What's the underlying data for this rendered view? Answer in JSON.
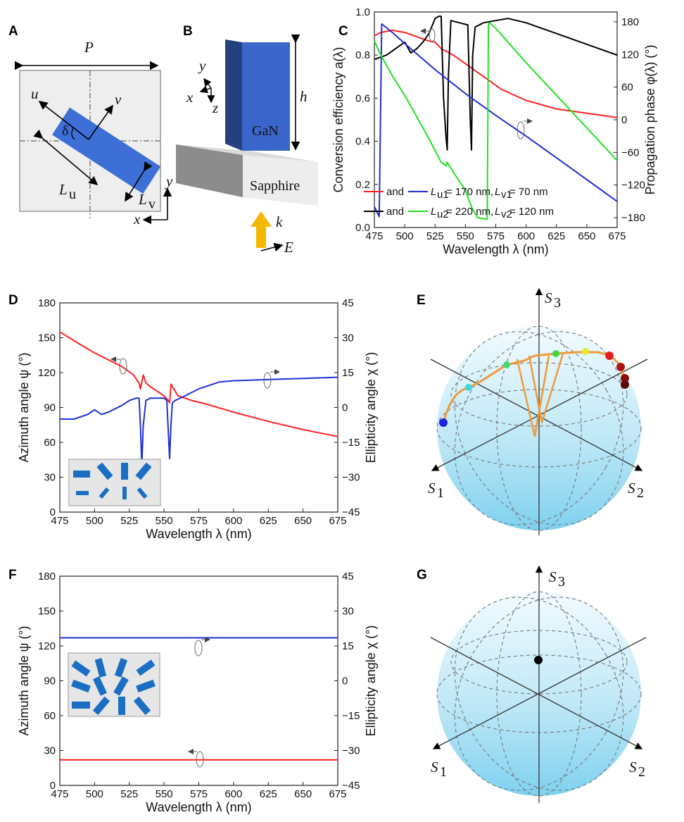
{
  "panel_labels": {
    "A": "A",
    "B": "B",
    "C": "C",
    "D": "D",
    "E": "E",
    "F": "F",
    "G": "G"
  },
  "panel_a": {
    "period": "P",
    "angle": "δ",
    "axis_u": "u",
    "axis_v": "v",
    "length_u_main": "L",
    "length_u_sub": "u",
    "length_v_main": "L",
    "length_v_sub": "v",
    "axis_x": "x",
    "axis_y": "y",
    "colors": {
      "cell": "#eeeeee",
      "pillar": "#3d6fd6"
    }
  },
  "panel_b": {
    "pillar_label": "GaN",
    "substrate_label": "Sapphire",
    "height": "h",
    "axis_x": "x",
    "axis_y": "y",
    "axis_z": "z",
    "wave_k": "k",
    "field_e": "E",
    "colors": {
      "pillar_front": "#3a66cc",
      "pillar_side": "#24407e",
      "arrow": "#f5b800"
    }
  },
  "chart_data": [
    {
      "id": "C",
      "type": "line",
      "xlabel": "Wavelength λ (nm)",
      "ylabel": "Conversion efficiency a(λ)",
      "ylabel_right": "Propagation phase φ(λ) (°)",
      "xlim": [
        475,
        675
      ],
      "ylim": [
        0,
        1.0
      ],
      "ylim_right": [
        -198,
        198
      ],
      "xticks": [
        "475",
        "500",
        "525",
        "550",
        "575",
        "600",
        "625",
        "650",
        "675"
      ],
      "yticks": [
        "0.0",
        "0.2",
        "0.4",
        "0.6",
        "0.8",
        "1.0"
      ],
      "yticks_right": [
        "−180",
        "−120",
        "−60",
        "0",
        "60",
        "120",
        "180"
      ],
      "legend": [
        {
          "text": "and",
          "param_u": "= 170 nm,",
          "param_v": "= 70 nm",
          "sub_u": "u1",
          "sub_v": "v1",
          "colors": [
            "#ff2020",
            "#1f2fd6"
          ]
        },
        {
          "text": "and",
          "param_u": "= 220 nm,",
          "param_v": "= 120 nm",
          "sub_u": "u2",
          "sub_v": "v2",
          "colors": [
            "#000000",
            "#22e022"
          ]
        }
      ],
      "series": [
        {
          "axis": "left",
          "color": "#ff2020",
          "x": [
            475,
            480,
            490,
            500,
            510,
            520,
            525,
            530,
            540,
            550,
            560,
            570,
            580,
            600,
            625,
            650,
            675
          ],
          "y": [
            0.89,
            0.905,
            0.915,
            0.905,
            0.885,
            0.865,
            0.86,
            0.83,
            0.8,
            0.76,
            0.72,
            0.68,
            0.64,
            0.59,
            0.55,
            0.53,
            0.51
          ]
        },
        {
          "axis": "left",
          "color": "#000000",
          "x": [
            475,
            485,
            490,
            500,
            505,
            510,
            515,
            520,
            525,
            528,
            530,
            532,
            534,
            535,
            536,
            538,
            545,
            552,
            554,
            555,
            556,
            558,
            565,
            575,
            585,
            600,
            625,
            650,
            675
          ],
          "y": [
            0.78,
            0.8,
            0.82,
            0.86,
            0.81,
            0.83,
            0.86,
            0.9,
            0.97,
            0.98,
            0.98,
            0.6,
            0.42,
            0.36,
            0.7,
            0.96,
            0.95,
            0.94,
            0.5,
            0.36,
            0.8,
            0.93,
            0.95,
            0.96,
            0.97,
            0.95,
            0.9,
            0.85,
            0.8
          ]
        },
        {
          "axis": "right",
          "color": "#1f2fd6",
          "x": [
            475,
            479,
            481,
            490,
            500,
            525,
            550,
            575,
            600,
            625,
            650,
            675
          ],
          "y": [
            -160,
            -178,
            176,
            160,
            140,
            92,
            48,
            8,
            -30,
            -70,
            -110,
            -150
          ]
        },
        {
          "axis": "right",
          "color": "#22e022",
          "x": [
            475,
            480,
            490,
            500,
            510,
            520,
            530,
            534,
            535,
            540,
            550,
            555,
            560,
            565,
            568,
            569,
            570,
            575,
            600,
            625,
            650,
            675
          ],
          "y": [
            145,
            120,
            80,
            45,
            5,
            -35,
            -78,
            -85,
            -78,
            -96,
            -130,
            -160,
            -180,
            -182,
            -183,
            176,
            178,
            168,
            105,
            45,
            -15,
            -75
          ]
        }
      ]
    },
    {
      "id": "D",
      "type": "line",
      "xlabel": "Wavelength λ (nm)",
      "ylabel": "Azimuth angle ψ (°)",
      "ylabel_right": "Ellipticity angle χ (°)",
      "xlim": [
        475,
        675
      ],
      "ylim": [
        0,
        180
      ],
      "ylim_right": [
        -45,
        45
      ],
      "xticks": [
        "475",
        "500",
        "525",
        "550",
        "575",
        "600",
        "625",
        "650",
        "675"
      ],
      "yticks": [
        "0",
        "30",
        "60",
        "90",
        "120",
        "150",
        "180"
      ],
      "yticks_right": [
        "−45",
        "−30",
        "−15",
        "0",
        "15",
        "30",
        "45"
      ],
      "series": [
        {
          "axis": "left",
          "color": "#ff2020",
          "x": [
            475,
            490,
            500,
            510,
            520,
            528,
            532,
            533,
            535,
            537,
            540,
            545,
            550,
            553,
            554,
            555,
            556,
            558,
            560,
            570,
            580,
            600,
            625,
            650,
            675
          ],
          "y": [
            155,
            144,
            137,
            131,
            125,
            118,
            111,
            106,
            118,
            111,
            108,
            104,
            100,
            96,
            94,
            110,
            108,
            104,
            100,
            96,
            93,
            86,
            78,
            71,
            65
          ]
        },
        {
          "axis": "right",
          "color": "#1f2fd6",
          "x": [
            475,
            485,
            495,
            500,
            505,
            510,
            520,
            525,
            530,
            532,
            533,
            534,
            535,
            537,
            540,
            550,
            552,
            553,
            554,
            555,
            556,
            558,
            565,
            575,
            590,
            600,
            625,
            650,
            675
          ],
          "y": [
            -5,
            -5,
            -3,
            -1,
            -3,
            -2,
            1,
            3,
            4,
            4,
            -8,
            -25,
            -8,
            3,
            4,
            4,
            3,
            -10,
            -22,
            -7,
            2,
            3,
            5,
            8,
            11,
            11.5,
            12,
            12.5,
            13
          ]
        }
      ]
    },
    {
      "id": "F",
      "type": "line",
      "xlabel": "Wavelength λ (nm)",
      "ylabel": "Azimuth angle ψ (°)",
      "ylabel_right": "Ellipticity angle χ (°)",
      "xlim": [
        475,
        675
      ],
      "ylim": [
        0,
        180
      ],
      "ylim_right": [
        -45,
        45
      ],
      "xticks": [
        "475",
        "500",
        "525",
        "550",
        "575",
        "600",
        "625",
        "650",
        "675"
      ],
      "yticks": [
        "0",
        "30",
        "60",
        "90",
        "120",
        "150",
        "180"
      ],
      "yticks_right": [
        "−45",
        "−30",
        "−15",
        "0",
        "15",
        "30",
        "45"
      ],
      "series": [
        {
          "axis": "left",
          "color": "#ff2020",
          "x": [
            475,
            675
          ],
          "y": [
            22,
            22
          ]
        },
        {
          "axis": "right",
          "color": "#1f2fd6",
          "x": [
            475,
            675
          ],
          "y": [
            18.5,
            18.5
          ]
        }
      ]
    }
  ],
  "panel_e": {
    "s1": "S",
    "s1_sub": "1",
    "s2": "S",
    "s2_sub": "2",
    "s3": "S",
    "s3_sub": "3",
    "curve_color": "#ee9a3a"
  },
  "panel_g": {
    "s1": "S",
    "s1_sub": "1",
    "s2": "S",
    "s2_sub": "2",
    "s3": "S",
    "s3_sub": "3",
    "point_color": "#000000"
  }
}
